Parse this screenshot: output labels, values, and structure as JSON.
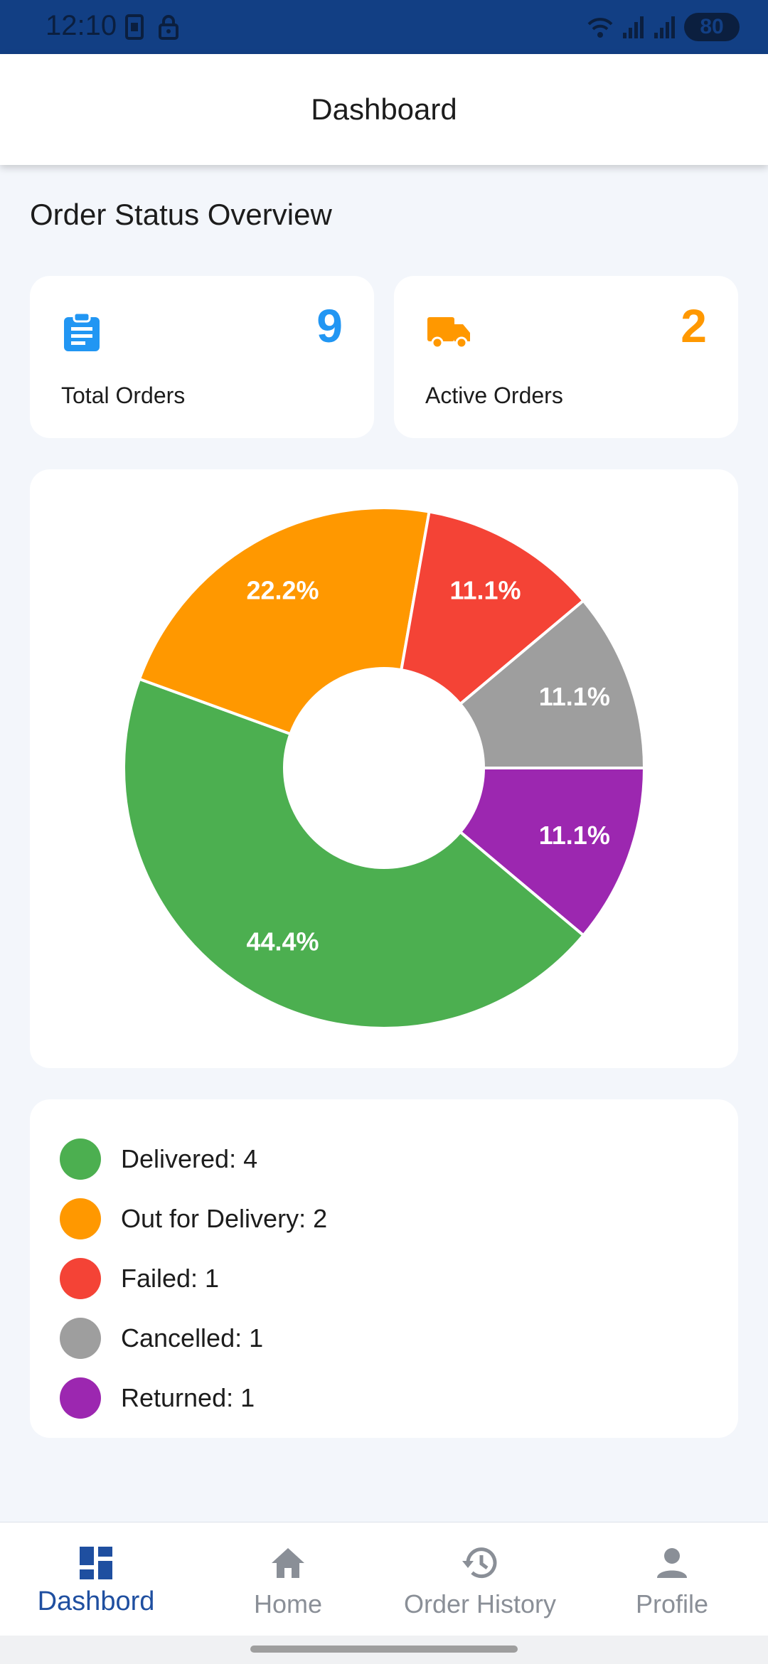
{
  "status_bar": {
    "time": "12:10",
    "battery": "80",
    "icons": [
      "screenshot-icon",
      "lock-icon",
      "wifi-icon",
      "signal-icon",
      "battery-icon"
    ]
  },
  "app_bar": {
    "title": "Dashboard"
  },
  "section_title": "Order Status Overview",
  "stats": {
    "total": {
      "value": "9",
      "label": "Total Orders",
      "icon": "clipboard-icon",
      "color": "#2196f3"
    },
    "active": {
      "value": "2",
      "label": "Active Orders",
      "icon": "truck-icon",
      "color": "#ff9800"
    }
  },
  "chart_data": {
    "type": "pie",
    "donut": true,
    "categories": [
      "Returned",
      "Delivered",
      "Out for Delivery",
      "Failed",
      "Cancelled"
    ],
    "values": [
      1,
      4,
      2,
      1,
      1
    ],
    "labels": [
      "11.1%",
      "44.4%",
      "22.2%",
      "11.1%",
      "11.1%"
    ],
    "colors": [
      "#9c27b0",
      "#4caf50",
      "#ff9800",
      "#f44336",
      "#9e9e9e"
    ]
  },
  "legend": [
    {
      "label": "Delivered: 4",
      "color": "#4caf50"
    },
    {
      "label": "Out for Delivery: 2",
      "color": "#ff9800"
    },
    {
      "label": "Failed: 1",
      "color": "#f44336"
    },
    {
      "label": "Cancelled: 1",
      "color": "#9e9e9e"
    },
    {
      "label": "Returned: 1",
      "color": "#9c27b0"
    }
  ],
  "nav": [
    {
      "label": "Dashbord",
      "icon": "dashboard-icon",
      "active": true
    },
    {
      "label": "Home",
      "icon": "home-icon",
      "active": false
    },
    {
      "label": "Order History",
      "icon": "history-icon",
      "active": false
    },
    {
      "label": "Profile",
      "icon": "person-icon",
      "active": false
    }
  ],
  "colors": {
    "accent": "#1f4fa0",
    "status_bar": "#123f84",
    "inactive": "#8a8f97"
  }
}
